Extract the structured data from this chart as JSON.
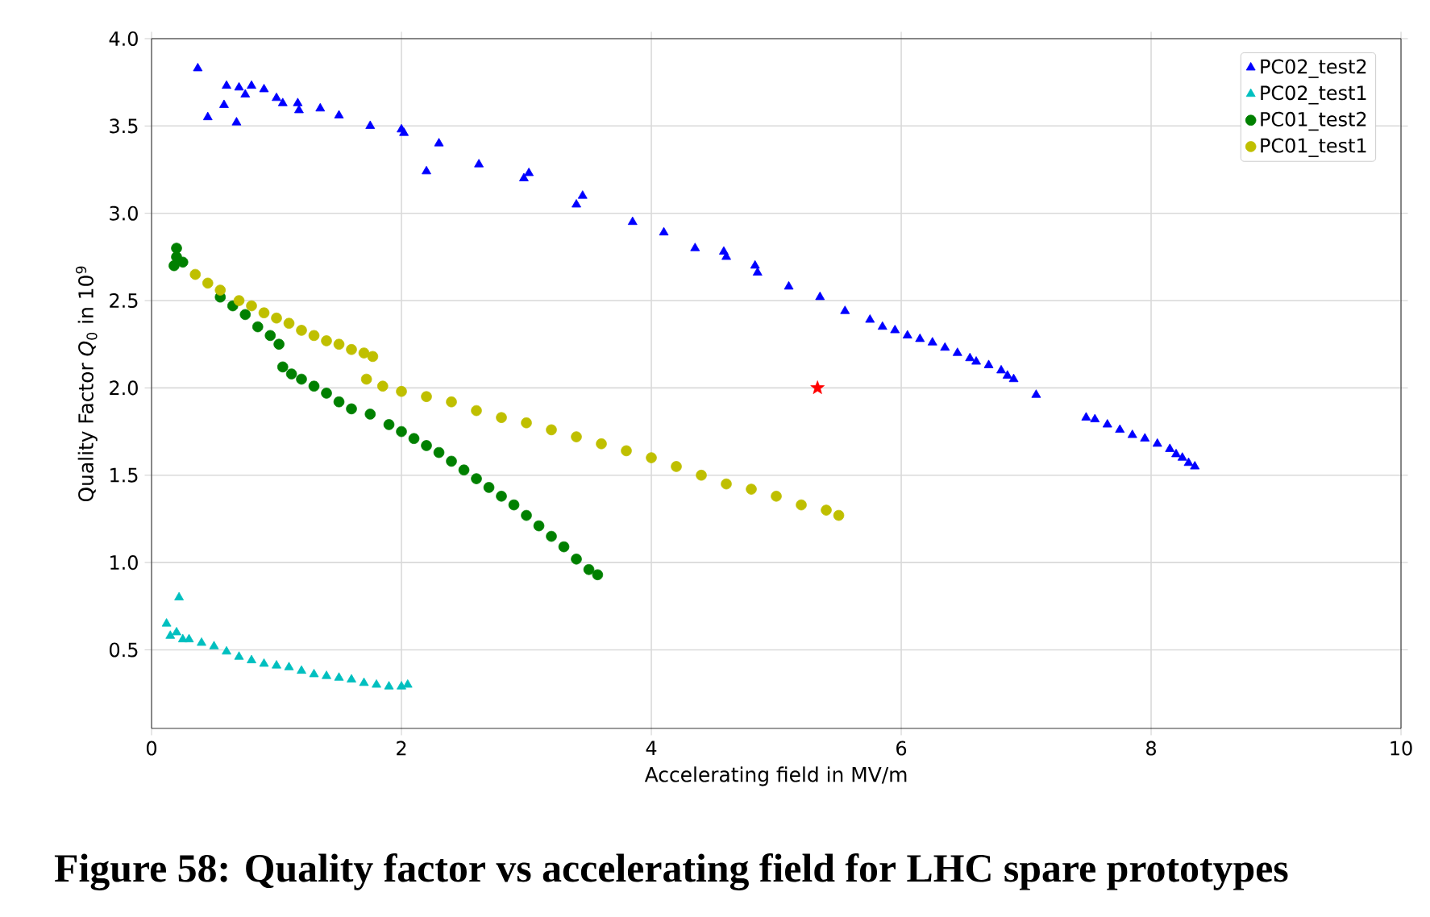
{
  "chart_data": {
    "type": "scatter",
    "xlabel": "Accelerating field in MV/m",
    "ylabel": "Quality Factor *Q*$_{0}$ in 10$^{9}$",
    "annotations": [
      "**Figure 58: Quality factor vs accelerating field for LHC spare prototypes**"
    ],
    "xlim": [
      0,
      10
    ],
    "xticks": [
      0,
      2,
      4,
      6,
      8,
      10
    ],
    "ylim": [
      0.05,
      4.0
    ],
    "yticks": [
      {
        "value": 0.5,
        "label": "0.5"
      },
      {
        "value": 1.0,
        "label": "1.0"
      },
      {
        "value": 1.5,
        "label": "1.5"
      },
      {
        "value": 2.0,
        "label": "2.0"
      },
      {
        "value": 2.5,
        "label": "2.5"
      },
      {
        "value": 3.0,
        "label": "3.0"
      },
      {
        "value": 3.5,
        "label": "3.5"
      },
      {
        "value": 4.0,
        "label": "4.0"
      }
    ],
    "grid": true,
    "legend": "top right",
    "series": [
      {
        "name": "PC02_test2",
        "color": "#0000ff",
        "marker": "triangle",
        "x": [
          0.37,
          0.45,
          0.58,
          0.6,
          0.68,
          0.7,
          0.75,
          0.8,
          0.9,
          1.0,
          1.05,
          1.17,
          1.18,
          1.35,
          1.5,
          1.75,
          2.0,
          2.02,
          2.2,
          2.3,
          2.62,
          2.98,
          3.02,
          3.4,
          3.45,
          3.85,
          4.1,
          4.35,
          4.58,
          4.6,
          4.83,
          4.85,
          5.1,
          5.35,
          5.55,
          5.75,
          5.85,
          5.95,
          6.05,
          6.15,
          6.25,
          6.35,
          6.45,
          6.55,
          6.6,
          6.7,
          6.8,
          6.85,
          6.9,
          7.08,
          7.48,
          7.55,
          7.65,
          7.75,
          7.85,
          7.95,
          8.05,
          8.15,
          8.2,
          8.25,
          8.3,
          8.35
        ],
        "values": [
          3.83,
          3.55,
          3.62,
          3.73,
          3.52,
          3.72,
          3.68,
          3.73,
          3.71,
          3.66,
          3.63,
          3.63,
          3.59,
          3.6,
          3.56,
          3.5,
          3.48,
          3.46,
          3.24,
          3.4,
          3.28,
          3.2,
          3.23,
          3.05,
          3.1,
          2.95,
          2.89,
          2.8,
          2.78,
          2.75,
          2.7,
          2.66,
          2.58,
          2.52,
          2.44,
          2.39,
          2.35,
          2.33,
          2.3,
          2.28,
          2.26,
          2.23,
          2.2,
          2.17,
          2.15,
          2.13,
          2.1,
          2.07,
          2.05,
          1.96,
          1.83,
          1.82,
          1.79,
          1.76,
          1.73,
          1.71,
          1.68,
          1.65,
          1.62,
          1.6,
          1.57,
          1.55
        ]
      },
      {
        "name": "PC02_test1",
        "color": "#00bfbf",
        "marker": "triangle",
        "x": [
          0.22,
          0.12,
          0.15,
          0.2,
          0.25,
          0.3,
          0.4,
          0.5,
          0.6,
          0.7,
          0.8,
          0.9,
          1.0,
          1.1,
          1.2,
          1.3,
          1.4,
          1.5,
          1.6,
          1.7,
          1.8,
          1.9,
          2.0,
          2.05
        ],
        "values": [
          0.8,
          0.65,
          0.58,
          0.6,
          0.56,
          0.56,
          0.54,
          0.52,
          0.49,
          0.46,
          0.44,
          0.42,
          0.41,
          0.4,
          0.38,
          0.36,
          0.35,
          0.34,
          0.33,
          0.31,
          0.3,
          0.29,
          0.29,
          0.3
        ]
      },
      {
        "name": "PC01_test2",
        "color": "#008000",
        "marker": "circle",
        "x": [
          0.18,
          0.2,
          0.2,
          0.25,
          0.55,
          0.65,
          0.75,
          0.85,
          0.95,
          1.02,
          1.05,
          1.12,
          1.2,
          1.3,
          1.4,
          1.5,
          1.6,
          1.75,
          1.9,
          2.0,
          2.1,
          2.2,
          2.3,
          2.4,
          2.5,
          2.6,
          2.7,
          2.8,
          2.9,
          3.0,
          3.1,
          3.2,
          3.3,
          3.4,
          3.5,
          3.57
        ],
        "values": [
          2.7,
          2.8,
          2.75,
          2.72,
          2.52,
          2.47,
          2.42,
          2.35,
          2.3,
          2.25,
          2.12,
          2.08,
          2.05,
          2.01,
          1.97,
          1.92,
          1.88,
          1.85,
          1.79,
          1.75,
          1.71,
          1.67,
          1.63,
          1.58,
          1.53,
          1.48,
          1.43,
          1.38,
          1.33,
          1.27,
          1.21,
          1.15,
          1.09,
          1.02,
          0.96,
          0.93
        ]
      },
      {
        "name": "PC01_test1",
        "color": "#bfbf00",
        "marker": "circle",
        "x": [
          0.35,
          0.45,
          0.55,
          0.7,
          0.8,
          0.9,
          1.0,
          1.1,
          1.2,
          1.3,
          1.4,
          1.5,
          1.6,
          1.7,
          1.77,
          1.72,
          1.85,
          2.0,
          2.2,
          2.4,
          2.6,
          2.8,
          3.0,
          3.2,
          3.4,
          3.6,
          3.8,
          4.0,
          4.2,
          4.4,
          4.6,
          4.8,
          5.0,
          5.2,
          5.4,
          5.5
        ],
        "values": [
          2.65,
          2.6,
          2.56,
          2.5,
          2.47,
          2.43,
          2.4,
          2.37,
          2.33,
          2.3,
          2.27,
          2.25,
          2.22,
          2.2,
          2.18,
          2.05,
          2.01,
          1.98,
          1.95,
          1.92,
          1.87,
          1.83,
          1.8,
          1.76,
          1.72,
          1.68,
          1.64,
          1.6,
          1.55,
          1.5,
          1.45,
          1.42,
          1.38,
          1.33,
          1.3,
          1.27
        ]
      },
      {
        "color": "#ff0000",
        "marker": "star",
        "x": [
          5.33
        ],
        "values": [
          2.0
        ]
      }
    ]
  }
}
